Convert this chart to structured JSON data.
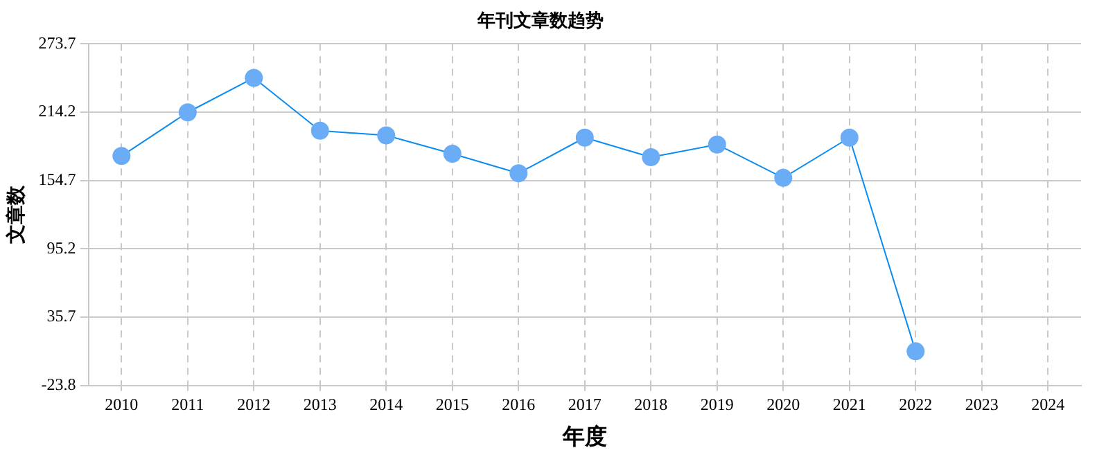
{
  "chart_data": {
    "type": "line",
    "title": "年刊文章数趋势",
    "xlabel": "年度",
    "ylabel": "文章数",
    "categories": [
      "2010",
      "2011",
      "2012",
      "2013",
      "2014",
      "2015",
      "2016",
      "2017",
      "2018",
      "2019",
      "2020",
      "2021",
      "2022",
      "2023",
      "2024"
    ],
    "series": [
      {
        "color": "#0a8cf0",
        "values": [
          176,
          214,
          244,
          198,
          194,
          178,
          161,
          192,
          175,
          186,
          157,
          192,
          6,
          null,
          null
        ]
      }
    ],
    "ylim": [
      -23.8,
      273.7
    ],
    "yticks": [
      -23.8,
      35.7,
      95.2,
      154.7,
      214.2,
      273.7
    ],
    "grid": true,
    "legend": false,
    "marker": "circle",
    "line_style": "solid"
  }
}
